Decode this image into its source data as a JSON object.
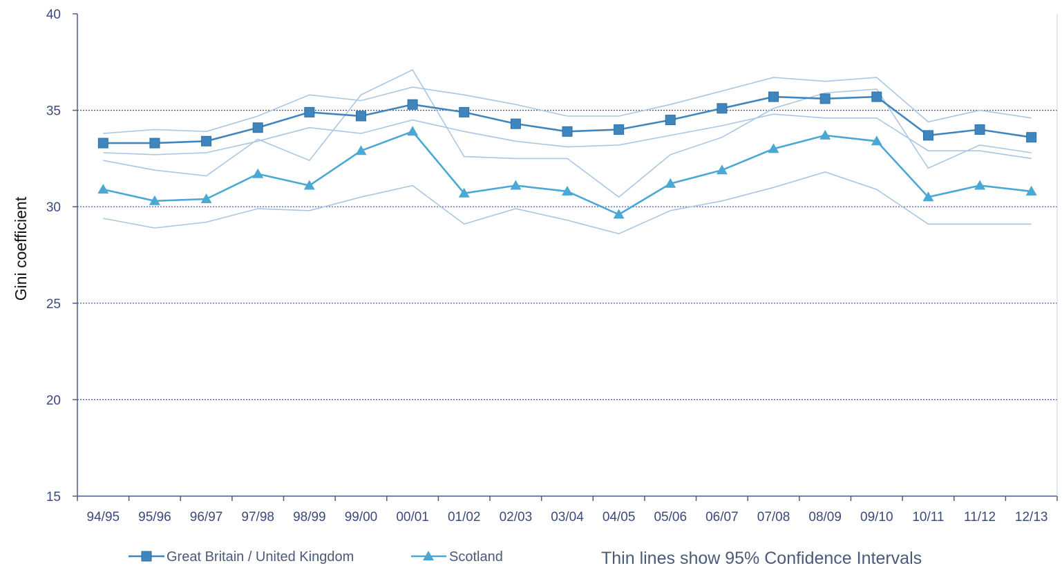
{
  "chart_data": {
    "type": "line",
    "title": "",
    "xlabel": "",
    "ylabel": "Gini coefficient",
    "ylim": [
      15,
      40
    ],
    "yticks": [
      "15",
      "20",
      "25",
      "30",
      "35",
      "40"
    ],
    "categories": [
      "94/95",
      "95/96",
      "96/97",
      "97/98",
      "98/99",
      "99/00",
      "00/01",
      "01/02",
      "02/03",
      "03/04",
      "04/05",
      "05/06",
      "06/07",
      "07/08",
      "08/09",
      "09/10",
      "10/11",
      "11/12",
      "12/13"
    ],
    "grid": true,
    "legend_position": "bottom-left",
    "note": "Thin lines show 95% Confidence Intervals",
    "series": [
      {
        "name": "Great Britain / United Kingdom",
        "marker": "square",
        "color": "#3f86bf",
        "values": [
          33.3,
          33.3,
          33.4,
          34.1,
          34.9,
          34.7,
          35.3,
          34.9,
          34.3,
          33.9,
          34.0,
          34.5,
          35.1,
          35.7,
          35.6,
          35.7,
          33.7,
          34.0,
          33.6
        ],
        "ci_upper": [
          33.8,
          34.0,
          33.9,
          34.7,
          35.8,
          35.5,
          36.2,
          35.8,
          35.3,
          34.7,
          34.7,
          35.3,
          36.0,
          36.7,
          36.5,
          36.7,
          34.4,
          35.0,
          34.6
        ],
        "ci_lower": [
          32.8,
          32.7,
          32.8,
          33.4,
          34.1,
          33.8,
          34.5,
          33.9,
          33.4,
          33.1,
          33.2,
          33.7,
          34.2,
          34.8,
          34.6,
          34.6,
          32.9,
          32.9,
          32.5
        ]
      },
      {
        "name": "Scotland",
        "marker": "triangle",
        "color": "#4aa8d4",
        "values": [
          30.9,
          30.3,
          30.4,
          31.7,
          31.1,
          32.9,
          33.9,
          30.7,
          31.1,
          30.8,
          29.6,
          31.2,
          31.9,
          33.0,
          33.7,
          33.4,
          30.5,
          31.1,
          30.8
        ],
        "ci_upper": [
          32.4,
          31.9,
          31.6,
          33.5,
          32.4,
          35.8,
          37.1,
          32.6,
          32.5,
          32.5,
          30.5,
          32.7,
          33.6,
          35.1,
          35.9,
          36.1,
          32.0,
          33.2,
          32.8
        ],
        "ci_lower": [
          29.4,
          28.9,
          29.2,
          29.9,
          29.8,
          30.5,
          31.1,
          29.1,
          29.9,
          29.3,
          28.6,
          29.8,
          30.3,
          31.0,
          31.8,
          30.9,
          29.1,
          29.1,
          29.1
        ]
      }
    ]
  },
  "colors": {
    "axis": "#4a5a8a",
    "grid": "#3a4aa0",
    "ci_line": "#a9c6e2"
  }
}
